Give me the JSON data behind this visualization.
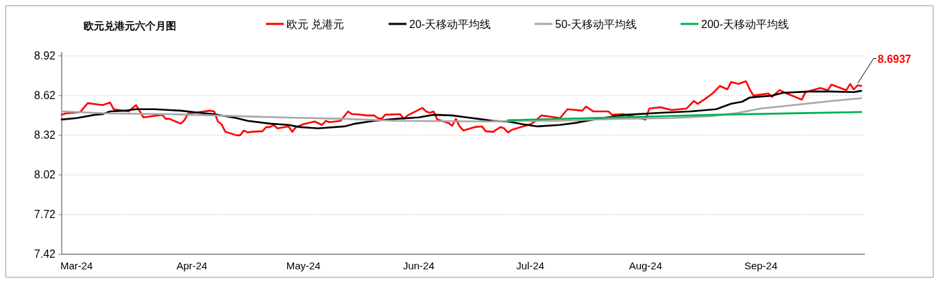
{
  "chart_data": {
    "type": "line",
    "title": "欧元兑港元六个月图",
    "xlim": [
      "2024-02-26",
      "2024-09-29"
    ],
    "xticks": [
      {
        "value": "2024-03-01",
        "label": "Mar-24"
      },
      {
        "value": "2024-04-01",
        "label": "Apr-24"
      },
      {
        "value": "2024-05-01",
        "label": "May-24"
      },
      {
        "value": "2024-06-01",
        "label": "Jun-24"
      },
      {
        "value": "2024-07-01",
        "label": "Jul-24"
      },
      {
        "value": "2024-08-01",
        "label": "Aug-24"
      },
      {
        "value": "2024-09-01",
        "label": "Sep-24"
      }
    ],
    "ylim": [
      7.42,
      8.95
    ],
    "yticks": [
      7.42,
      7.72,
      8.02,
      8.32,
      8.62,
      8.92
    ],
    "grid": "y",
    "legend": "top",
    "series": [
      {
        "name": "欧元 兑港元",
        "color": "#ff0000",
        "x": [
          "2024-02-26",
          "2024-02-27",
          "2024-03-02",
          "2024-03-04",
          "2024-03-08",
          "2024-03-10",
          "2024-03-11",
          "2024-03-15",
          "2024-03-17",
          "2024-03-19",
          "2024-03-24",
          "2024-03-25",
          "2024-03-26",
          "2024-03-29",
          "2024-03-30",
          "2024-03-31",
          "2024-04-06",
          "2024-04-07",
          "2024-04-08",
          "2024-04-09",
          "2024-04-10",
          "2024-04-13",
          "2024-04-14",
          "2024-04-15",
          "2024-04-16",
          "2024-04-17",
          "2024-04-20",
          "2024-04-21",
          "2024-04-22",
          "2024-04-23",
          "2024-04-24",
          "2024-04-27",
          "2024-04-28",
          "2024-04-29",
          "2024-05-01",
          "2024-05-04",
          "2024-05-06",
          "2024-05-07",
          "2024-05-08",
          "2024-05-11",
          "2024-05-13",
          "2024-05-14",
          "2024-05-15",
          "2024-05-18",
          "2024-05-20",
          "2024-05-21",
          "2024-05-22",
          "2024-05-23",
          "2024-05-27",
          "2024-05-28",
          "2024-05-29",
          "2024-06-02",
          "2024-06-03",
          "2024-06-04",
          "2024-06-05",
          "2024-06-06",
          "2024-06-09",
          "2024-06-10",
          "2024-06-11",
          "2024-06-12",
          "2024-06-13",
          "2024-06-16",
          "2024-06-18",
          "2024-06-19",
          "2024-06-21",
          "2024-06-23",
          "2024-06-24",
          "2024-06-25",
          "2024-06-26",
          "2024-07-01",
          "2024-07-02",
          "2024-07-04",
          "2024-07-09",
          "2024-07-11",
          "2024-07-15",
          "2024-07-16",
          "2024-07-18",
          "2024-07-22",
          "2024-07-23",
          "2024-07-26",
          "2024-07-28",
          "2024-08-01",
          "2024-08-02",
          "2024-08-05",
          "2024-08-08",
          "2024-08-12",
          "2024-08-14",
          "2024-08-15",
          "2024-08-17",
          "2024-08-19",
          "2024-08-21",
          "2024-08-23",
          "2024-08-24",
          "2024-08-26",
          "2024-08-28",
          "2024-08-29",
          "2024-08-30",
          "2024-09-03",
          "2024-09-04",
          "2024-09-06",
          "2024-09-08",
          "2024-09-12",
          "2024-09-13",
          "2024-09-17",
          "2024-09-19",
          "2024-09-20",
          "2024-09-24",
          "2024-09-25",
          "2024-09-26",
          "2024-09-27",
          "2024-09-28"
        ],
        "values": [
          8.475,
          8.485,
          8.496,
          8.563,
          8.548,
          8.568,
          8.517,
          8.5,
          8.548,
          8.455,
          8.475,
          8.444,
          8.444,
          8.408,
          8.434,
          8.485,
          8.506,
          8.5,
          8.424,
          8.403,
          8.346,
          8.32,
          8.32,
          8.356,
          8.341,
          8.346,
          8.351,
          8.382,
          8.382,
          8.398,
          8.372,
          8.387,
          8.346,
          8.382,
          8.403,
          8.424,
          8.398,
          8.429,
          8.419,
          8.429,
          8.5,
          8.48,
          8.48,
          8.47,
          8.47,
          8.45,
          8.444,
          8.475,
          8.48,
          8.444,
          8.47,
          8.527,
          8.5,
          8.49,
          8.5,
          8.439,
          8.413,
          8.392,
          8.444,
          8.387,
          8.356,
          8.382,
          8.387,
          8.351,
          8.346,
          8.382,
          8.372,
          8.341,
          8.361,
          8.403,
          8.419,
          8.47,
          8.45,
          8.517,
          8.506,
          8.537,
          8.5,
          8.5,
          8.475,
          8.48,
          8.465,
          8.439,
          8.522,
          8.532,
          8.511,
          8.522,
          8.579,
          8.558,
          8.594,
          8.636,
          8.693,
          8.667,
          8.723,
          8.708,
          8.729,
          8.667,
          8.62,
          8.636,
          8.61,
          8.661,
          8.636,
          8.589,
          8.646,
          8.677,
          8.661,
          8.703,
          8.661,
          8.708,
          8.667,
          8.698,
          8.6937
        ]
      },
      {
        "name": "20-天移动平均线",
        "color": "#000000",
        "x": [
          "2024-02-26",
          "2024-03-01",
          "2024-03-06",
          "2024-03-08",
          "2024-03-10",
          "2024-03-14",
          "2024-03-17",
          "2024-03-22",
          "2024-03-29",
          "2024-04-03",
          "2024-04-07",
          "2024-04-13",
          "2024-04-16",
          "2024-04-22",
          "2024-04-27",
          "2024-04-30",
          "2024-05-05",
          "2024-05-12",
          "2024-05-15",
          "2024-05-20",
          "2024-05-26",
          "2024-06-01",
          "2024-06-05",
          "2024-06-10",
          "2024-06-14",
          "2024-06-17",
          "2024-06-21",
          "2024-06-25",
          "2024-06-29",
          "2024-07-03",
          "2024-07-09",
          "2024-07-13",
          "2024-07-18",
          "2024-07-24",
          "2024-07-27",
          "2024-08-05",
          "2024-08-13",
          "2024-08-20",
          "2024-08-24",
          "2024-08-27",
          "2024-08-29",
          "2024-09-04",
          "2024-09-07",
          "2024-09-14",
          "2024-09-20",
          "2024-09-26",
          "2024-09-28"
        ],
        "values": [
          8.439,
          8.45,
          8.475,
          8.48,
          8.5,
          8.506,
          8.517,
          8.517,
          8.506,
          8.49,
          8.48,
          8.45,
          8.429,
          8.408,
          8.398,
          8.382,
          8.372,
          8.387,
          8.408,
          8.429,
          8.444,
          8.455,
          8.475,
          8.47,
          8.455,
          8.444,
          8.429,
          8.424,
          8.403,
          8.387,
          8.398,
          8.413,
          8.439,
          8.465,
          8.475,
          8.49,
          8.5,
          8.517,
          8.558,
          8.574,
          8.605,
          8.62,
          8.641,
          8.651,
          8.651,
          8.646,
          8.656
        ]
      },
      {
        "name": "50-天移动平均线",
        "color": "#a6a6a6",
        "x": [
          "2024-02-26",
          "2024-03-10",
          "2024-03-26",
          "2024-04-13",
          "2024-04-25",
          "2024-05-12",
          "2024-05-26",
          "2024-06-20",
          "2024-06-26",
          "2024-07-08",
          "2024-07-24",
          "2024-08-08",
          "2024-08-19",
          "2024-08-26",
          "2024-09-01",
          "2024-09-08",
          "2024-09-20",
          "2024-09-28"
        ],
        "values": [
          8.5,
          8.485,
          8.48,
          8.465,
          8.455,
          8.444,
          8.429,
          8.424,
          8.429,
          8.429,
          8.444,
          8.45,
          8.465,
          8.49,
          8.522,
          8.543,
          8.579,
          8.6
        ]
      },
      {
        "name": "200-天移动平均线",
        "color": "#00b050",
        "x": [
          "2024-06-25",
          "2024-07-24",
          "2024-08-20",
          "2024-09-28"
        ],
        "values": [
          8.434,
          8.455,
          8.475,
          8.496
        ]
      }
    ],
    "annotations": [
      {
        "text": "8.6937",
        "x": "2024-09-28",
        "y": 8.6937
      }
    ]
  }
}
